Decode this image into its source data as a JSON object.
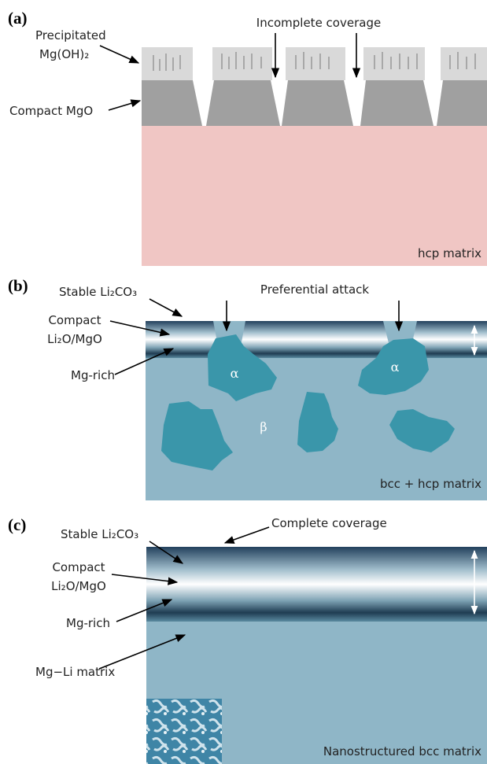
{
  "panel_a": {
    "label": "(a)",
    "precipitated": [
      "Precipitated",
      "Mg(OH)₂"
    ],
    "coverage": "Incomplete coverage",
    "compact": "Compact MgO",
    "matrix": "hcp matrix"
  },
  "panel_b": {
    "label": "(b)",
    "stable": "Stable Li₂CO₃",
    "attack": "Preferential attack",
    "compact": [
      "Compact",
      "Li₂O/MgO"
    ],
    "mg_rich": "Mg-rich",
    "alpha": "α",
    "beta": "β",
    "matrix": "bcc + hcp matrix"
  },
  "panel_c": {
    "label": "(c)",
    "stable": "Stable Li₂CO₃",
    "coverage": "Complete coverage",
    "compact": [
      "Compact",
      "Li₂O/MgO"
    ],
    "mg_rich": "Mg-rich",
    "mg_li": "Mg−Li matrix",
    "matrix": "Nanostructured bcc matrix"
  }
}
